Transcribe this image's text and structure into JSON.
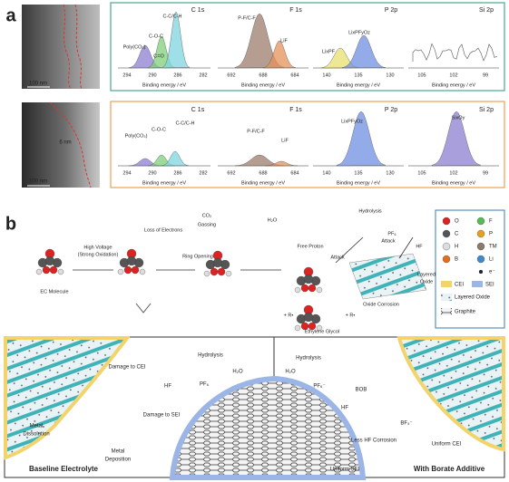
{
  "panel_a": {
    "label": "a",
    "rows": [
      {
        "tem_scale": "100 nm",
        "spectra": [
          {
            "title": "C 1s",
            "peaks": [
              "C-C/C-H",
              "C-O-C",
              "Poly(CO₃)",
              "C=O"
            ],
            "ticks": [
              "294",
              "290",
              "286",
              "282"
            ],
            "xlabel": "Binding energy / eV"
          },
          {
            "title": "F 1s",
            "peaks": [
              "P-F/C-F",
              "LiF"
            ],
            "ticks": [
              "692",
              "688",
              "684"
            ],
            "xlabel": "Binding energy / eV"
          },
          {
            "title": "P 2p",
            "peaks": [
              "LixPFyOz",
              "LixPF"
            ],
            "ticks": [
              "140",
              "135",
              "130"
            ],
            "xlabel": "Binding energy / eV"
          },
          {
            "title": "Si 2p",
            "peaks": [],
            "ticks": [
              "105",
              "102",
              "99"
            ],
            "xlabel": "Binding energy / eV"
          }
        ]
      },
      {
        "tem_scale": "100 nm",
        "thickness": "6 nm",
        "spectra": [
          {
            "title": "C 1s",
            "peaks": [
              "Poly(CO₃)",
              "C-O-C",
              "C-C/C-H"
            ],
            "ticks": [
              "294",
              "290",
              "286",
              "282"
            ],
            "xlabel": "Binding energy / eV"
          },
          {
            "title": "F 1s",
            "peaks": [
              "P-F/C-F",
              "LiF"
            ],
            "ticks": [
              "692",
              "688",
              "684"
            ],
            "xlabel": "Binding energy / eV"
          },
          {
            "title": "P 2p",
            "peaks": [
              "LixPFyOz"
            ],
            "ticks": [
              "140",
              "135",
              "130"
            ],
            "xlabel": "Binding energy / eV"
          },
          {
            "title": "Si 2p",
            "peaks": [
              "SixOy"
            ],
            "ticks": [
              "105",
              "102",
              "99"
            ],
            "xlabel": "Binding energy / eV"
          }
        ]
      }
    ]
  },
  "panel_b": {
    "label": "b",
    "mechanism": [
      "EC Molecule",
      "High Voltage",
      "(Strong Oxidation)",
      "Loss of Electrons",
      "Ring Opening",
      "CO₂",
      "Gassing",
      "H₂O",
      "Free Proton",
      "Attack",
      "Hydrolysis",
      "PF₆",
      "HF",
      "Attack",
      "Layered",
      "Oxide",
      "Oxide Corrosion",
      "+ R•",
      "+ R•",
      "Ethylene Glycol"
    ],
    "legend": [
      "O",
      "F",
      "C",
      "P",
      "H",
      "TM",
      "B",
      "Li",
      "e⁻",
      "CEI",
      "SEI",
      "Layered Oxide",
      "Graphite"
    ],
    "baseline": {
      "labels": [
        "Damage to CEI",
        "Hydrolysis",
        "H₂O",
        "PF₆",
        "HF",
        "Damage to SEI",
        "Metal",
        "Dissolution",
        "Metal",
        "Deposition"
      ],
      "title": "Baseline Electrolyte"
    },
    "borate": {
      "labels": [
        "Hydrolysis",
        "H₂O",
        "PF₆⁻",
        "BOB",
        "HF",
        "BF₄⁻",
        "Less HF Corrosion",
        "Uniform CEI",
        "Uniform SEI"
      ],
      "title": "With Borate Additive"
    }
  }
}
